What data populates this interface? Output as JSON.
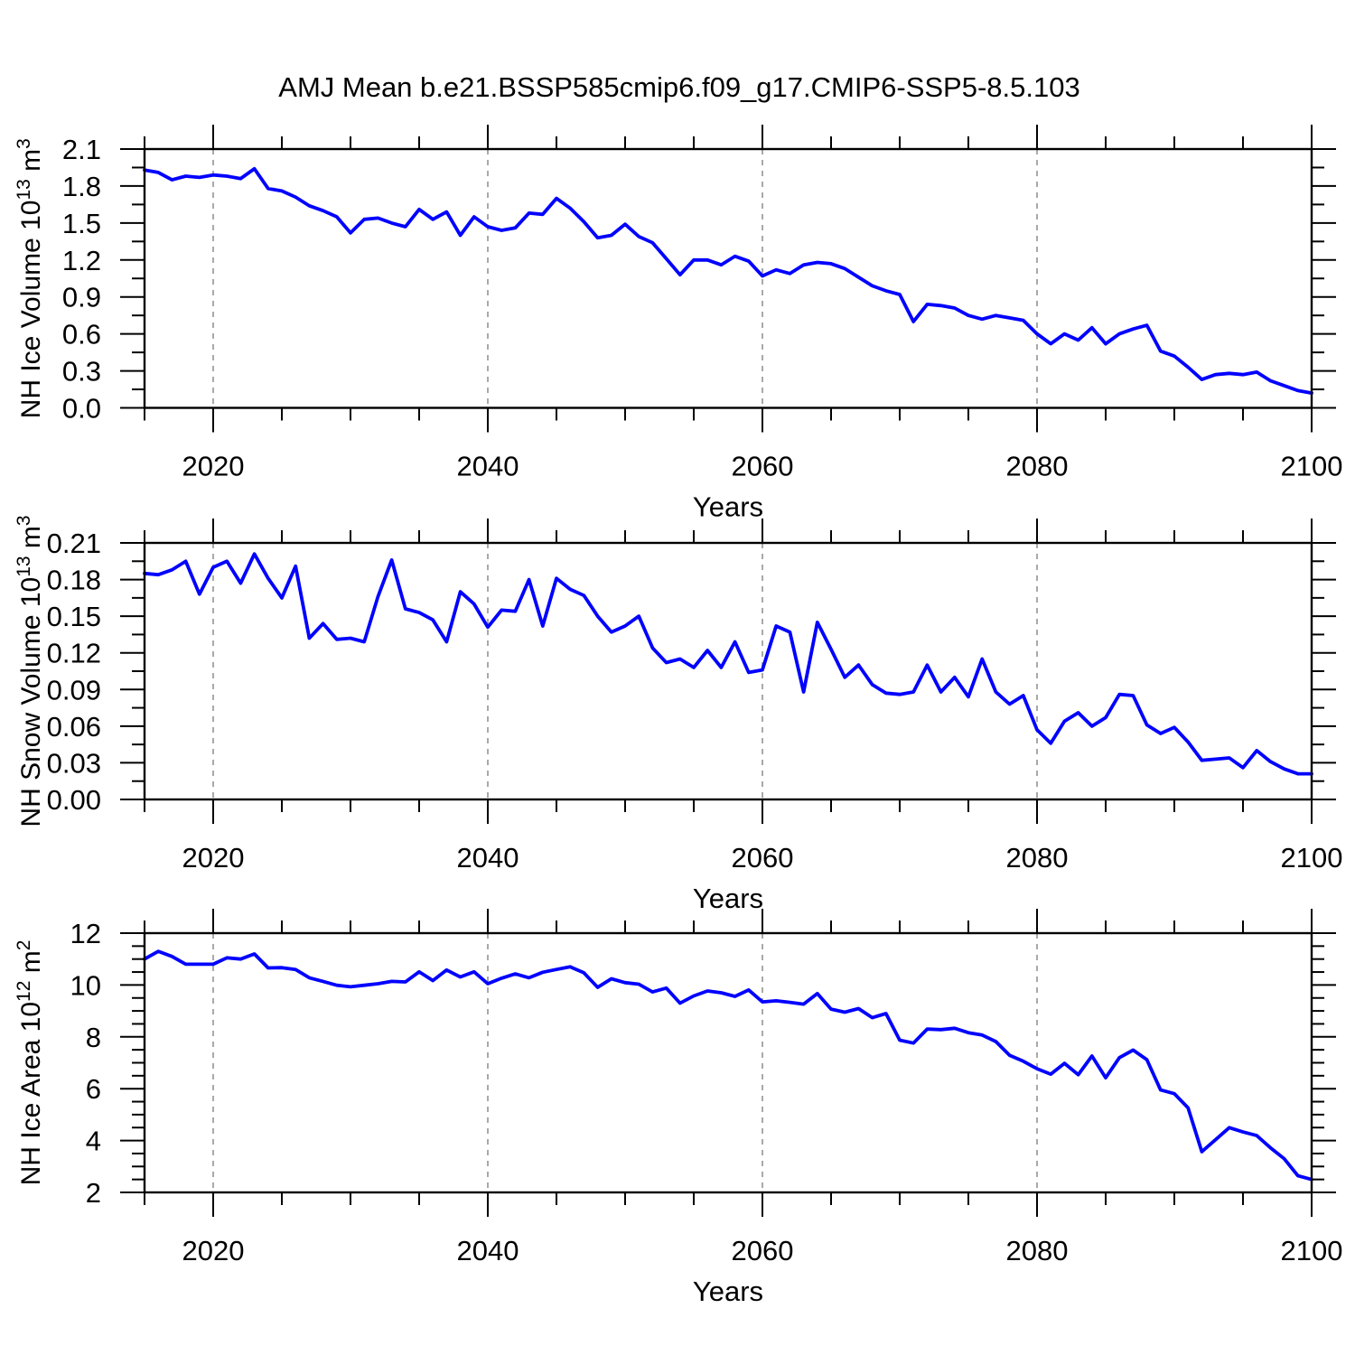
{
  "title": "AMJ Mean b.e21.BSSP585cmip6.f09_g17.CMIP6-SSP5-8.5.103",
  "colors": {
    "line": "#0000ff",
    "grid": "#a9a9a9",
    "axis": "#000000"
  },
  "chart_data": {
    "type": "line",
    "title": "AMJ Mean b.e21.BSSP585cmip6.f09_g17.CMIP6-SSP5-8.5.103",
    "xlabel": "Years",
    "legend": "none",
    "x_range": [
      2015,
      2100
    ],
    "x_major_ticks": [
      2020,
      2040,
      2060,
      2080,
      2100
    ],
    "x_minor_step": 5,
    "grid_at_years": [
      2020,
      2040,
      2060,
      2080
    ],
    "years": [
      2015,
      2016,
      2017,
      2018,
      2019,
      2020,
      2021,
      2022,
      2023,
      2024,
      2025,
      2026,
      2027,
      2028,
      2029,
      2030,
      2031,
      2032,
      2033,
      2034,
      2035,
      2036,
      2037,
      2038,
      2039,
      2040,
      2041,
      2042,
      2043,
      2044,
      2045,
      2046,
      2047,
      2048,
      2049,
      2050,
      2051,
      2052,
      2053,
      2054,
      2055,
      2056,
      2057,
      2058,
      2059,
      2060,
      2061,
      2062,
      2063,
      2064,
      2065,
      2066,
      2067,
      2068,
      2069,
      2070,
      2071,
      2072,
      2073,
      2074,
      2075,
      2076,
      2077,
      2078,
      2079,
      2080,
      2081,
      2082,
      2083,
      2084,
      2085,
      2086,
      2087,
      2088,
      2089,
      2090,
      2091,
      2092,
      2093,
      2094,
      2095,
      2096,
      2097,
      2098,
      2099,
      2100
    ],
    "panels": [
      {
        "name": "nh-ice-volume",
        "ylabel": "NH Ice Volume 10^13 m^3",
        "ylabel_parts": [
          {
            "t": "NH Ice Volume 10"
          },
          {
            "t": "13",
            "sup": true
          },
          {
            "t": " m"
          },
          {
            "t": "3",
            "sup": true
          }
        ],
        "ylim": [
          0.0,
          2.1
        ],
        "yticks": [
          "0.0",
          "0.3",
          "0.6",
          "0.9",
          "1.2",
          "1.5",
          "1.8",
          "2.1"
        ],
        "y_minor_step": 0.15,
        "values": [
          1.93,
          1.91,
          1.85,
          1.88,
          1.87,
          1.89,
          1.88,
          1.86,
          1.94,
          1.78,
          1.76,
          1.71,
          1.64,
          1.6,
          1.55,
          1.42,
          1.53,
          1.54,
          1.5,
          1.47,
          1.61,
          1.53,
          1.59,
          1.4,
          1.55,
          1.47,
          1.44,
          1.46,
          1.58,
          1.57,
          1.7,
          1.62,
          1.51,
          1.38,
          1.4,
          1.49,
          1.39,
          1.34,
          1.21,
          1.08,
          1.2,
          1.2,
          1.16,
          1.23,
          1.19,
          1.07,
          1.12,
          1.09,
          1.16,
          1.18,
          1.17,
          1.13,
          1.06,
          0.99,
          0.95,
          0.92,
          0.7,
          0.84,
          0.83,
          0.81,
          0.75,
          0.72,
          0.75,
          0.73,
          0.71,
          0.6,
          0.52,
          0.6,
          0.55,
          0.65,
          0.52,
          0.6,
          0.64,
          0.67,
          0.46,
          0.42,
          0.33,
          0.23,
          0.27,
          0.28,
          0.27,
          0.29,
          0.22,
          0.18,
          0.14,
          0.12
        ]
      },
      {
        "name": "nh-snow-volume",
        "ylabel": "NH Snow Volume 10^13 m^3",
        "ylabel_parts": [
          {
            "t": "NH Snow Volume 10"
          },
          {
            "t": "13",
            "sup": true
          },
          {
            "t": " m"
          },
          {
            "t": "3",
            "sup": true
          }
        ],
        "ylim": [
          0.0,
          0.21
        ],
        "yticks": [
          "0.00",
          "0.03",
          "0.06",
          "0.09",
          "0.12",
          "0.15",
          "0.18",
          "0.21"
        ],
        "y_minor_step": 0.015,
        "values": [
          0.185,
          0.184,
          0.188,
          0.195,
          0.168,
          0.19,
          0.195,
          0.177,
          0.201,
          0.181,
          0.165,
          0.191,
          0.132,
          0.144,
          0.131,
          0.132,
          0.129,
          0.166,
          0.196,
          0.156,
          0.153,
          0.147,
          0.129,
          0.17,
          0.16,
          0.141,
          0.155,
          0.154,
          0.18,
          0.142,
          0.181,
          0.172,
          0.167,
          0.15,
          0.137,
          0.142,
          0.15,
          0.124,
          0.112,
          0.115,
          0.108,
          0.122,
          0.108,
          0.129,
          0.104,
          0.106,
          0.142,
          0.137,
          0.088,
          0.145,
          0.123,
          0.1,
          0.11,
          0.094,
          0.087,
          0.086,
          0.088,
          0.11,
          0.088,
          0.1,
          0.084,
          0.115,
          0.088,
          0.078,
          0.085,
          0.057,
          0.046,
          0.064,
          0.071,
          0.06,
          0.067,
          0.086,
          0.085,
          0.061,
          0.054,
          0.059,
          0.047,
          0.032,
          0.033,
          0.034,
          0.026,
          0.04,
          0.031,
          0.025,
          0.021,
          0.021
        ]
      },
      {
        "name": "nh-ice-area",
        "ylabel": "NH Ice Area 10^12 m^2",
        "ylabel_parts": [
          {
            "t": "NH Ice Area 10"
          },
          {
            "t": "12",
            "sup": true
          },
          {
            "t": " m"
          },
          {
            "t": "2",
            "sup": true
          }
        ],
        "ylim": [
          2,
          12
        ],
        "yticks": [
          "2",
          "4",
          "6",
          "8",
          "10",
          "12"
        ],
        "y_minor_step": 0.5,
        "values": [
          11.0,
          11.3,
          11.1,
          10.8,
          10.8,
          10.8,
          11.05,
          11.0,
          11.2,
          10.66,
          10.67,
          10.6,
          10.28,
          10.14,
          9.99,
          9.93,
          9.99,
          10.05,
          10.14,
          10.12,
          10.51,
          10.17,
          10.58,
          10.31,
          10.51,
          10.05,
          10.26,
          10.43,
          10.28,
          10.49,
          10.6,
          10.7,
          10.47,
          9.91,
          10.24,
          10.09,
          10.03,
          9.73,
          9.88,
          9.3,
          9.58,
          9.77,
          9.7,
          9.56,
          9.81,
          9.35,
          9.39,
          9.33,
          9.26,
          9.67,
          9.07,
          8.95,
          9.09,
          8.74,
          8.9,
          7.87,
          7.76,
          8.3,
          8.28,
          8.33,
          8.16,
          8.07,
          7.82,
          7.29,
          7.06,
          6.77,
          6.56,
          6.98,
          6.54,
          7.26,
          6.42,
          7.2,
          7.49,
          7.12,
          5.95,
          5.81,
          5.26,
          3.57,
          4.03,
          4.5,
          4.33,
          4.19,
          3.72,
          3.3,
          2.64,
          2.5
        ]
      }
    ]
  }
}
